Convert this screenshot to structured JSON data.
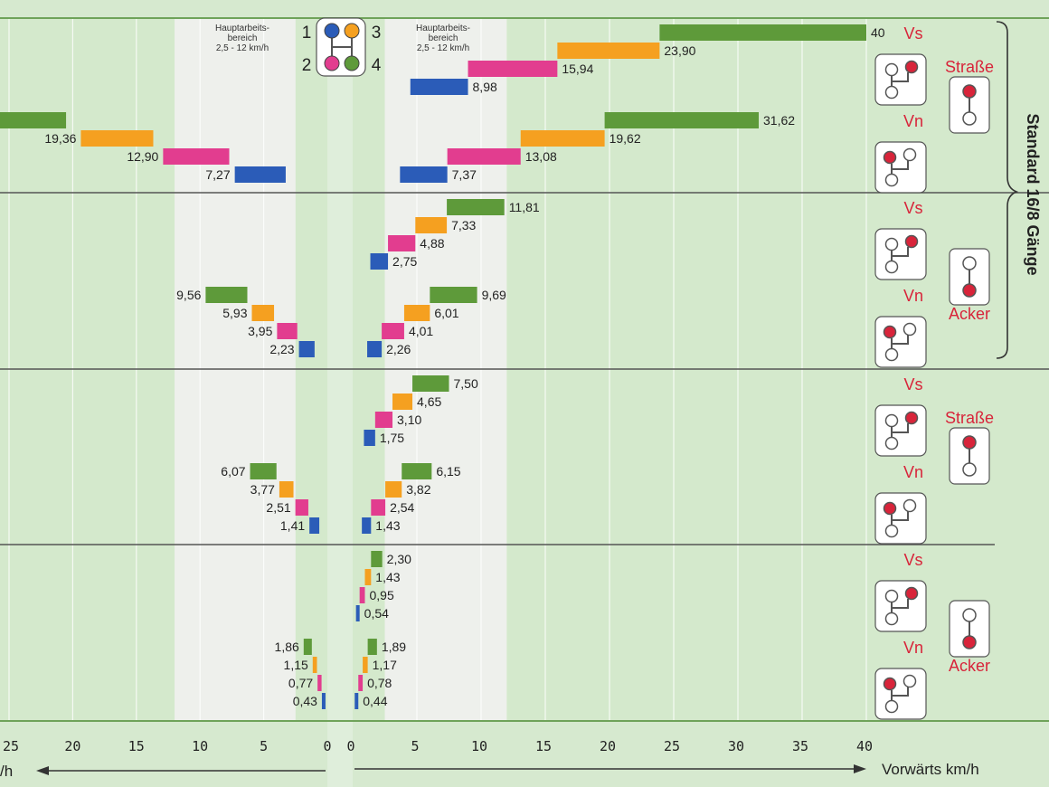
{
  "chart_data": {
    "type": "bar",
    "range_labels": [
      "1",
      "2",
      "3",
      "4"
    ],
    "colors": {
      "1": "#2b5cb8",
      "2": "#e23d8f",
      "3": "#f5a020",
      "4": "#5e9a3a"
    },
    "band_label": "Hauptarbeits-\nbereich\n2,5 - 12 km/h",
    "band_range": [
      2.5,
      12
    ],
    "bracket_label": "Standard 16/8 Gänge",
    "xlabel_forward": "Vorwärts km/h",
    "xlabel_reverse": "/h",
    "xlim_forward": [
      0,
      40
    ],
    "xlim_reverse": [
      0,
      25
    ],
    "xticks_forward": [
      "0",
      "5",
      "10",
      "15",
      "20",
      "25",
      "30",
      "35",
      "40"
    ],
    "xticks_reverse": [
      "25",
      "20",
      "15",
      "10",
      "5",
      "0"
    ],
    "groups": [
      {
        "mode_label": "Straße",
        "rows": [
          {
            "label": "Vs",
            "forward": [
              8.98,
              15.94,
              23.9,
              40
            ],
            "forward_labels": [
              "8,98",
              "15,94",
              "23,90",
              "40"
            ],
            "reverse": [],
            "reverse_labels": []
          },
          {
            "label": "Vn",
            "forward": [
              7.37,
              13.08,
              19.62,
              31.62
            ],
            "forward_labels": [
              "7,37",
              "13,08",
              "19,62",
              "31,62"
            ],
            "reverse": [
              7.27,
              12.9,
              19.36,
              31.0
            ],
            "reverse_labels": [
              "7,27",
              "12,90",
              "19,36",
              ""
            ]
          }
        ]
      },
      {
        "mode_label": "Acker",
        "rows": [
          {
            "label": "Vs",
            "forward": [
              2.75,
              4.88,
              7.33,
              11.81
            ],
            "forward_labels": [
              "2,75",
              "4,88",
              "7,33",
              "11,81"
            ],
            "reverse": [],
            "reverse_labels": []
          },
          {
            "label": "Vn",
            "forward": [
              2.26,
              4.01,
              6.01,
              9.69
            ],
            "forward_labels": [
              "2,26",
              "4,01",
              "6,01",
              "9,69"
            ],
            "reverse": [
              2.23,
              3.95,
              5.93,
              9.56
            ],
            "reverse_labels": [
              "2,23",
              "3,95",
              "5,93",
              "9,56"
            ]
          }
        ]
      },
      {
        "mode_label": "Straße",
        "rows": [
          {
            "label": "Vs",
            "forward": [
              1.75,
              3.1,
              4.65,
              7.5
            ],
            "forward_labels": [
              "1,75",
              "3,10",
              "4,65",
              "7,50"
            ],
            "reverse": [],
            "reverse_labels": []
          },
          {
            "label": "Vn",
            "forward": [
              1.43,
              2.54,
              3.82,
              6.15
            ],
            "forward_labels": [
              "1,43",
              "2,54",
              "3,82",
              "6,15"
            ],
            "reverse": [
              1.41,
              2.51,
              3.77,
              6.07
            ],
            "reverse_labels": [
              "1,41",
              "2,51",
              "3,77",
              "6,07"
            ]
          }
        ]
      },
      {
        "mode_label": "Acker",
        "rows": [
          {
            "label": "Vs",
            "forward": [
              0.54,
              0.95,
              1.43,
              2.3
            ],
            "forward_labels": [
              "0,54",
              "0,95",
              "1,43",
              "2,30"
            ],
            "reverse": [],
            "reverse_labels": []
          },
          {
            "label": "Vn",
            "forward": [
              0.44,
              0.78,
              1.17,
              1.89
            ],
            "forward_labels": [
              "0,44",
              "0,78",
              "1,17",
              "1,89"
            ],
            "reverse": [
              0.43,
              0.77,
              1.15,
              1.86
            ],
            "reverse_labels": [
              "0,43",
              "0,77",
              "1,15",
              "1,86"
            ]
          }
        ]
      }
    ]
  }
}
